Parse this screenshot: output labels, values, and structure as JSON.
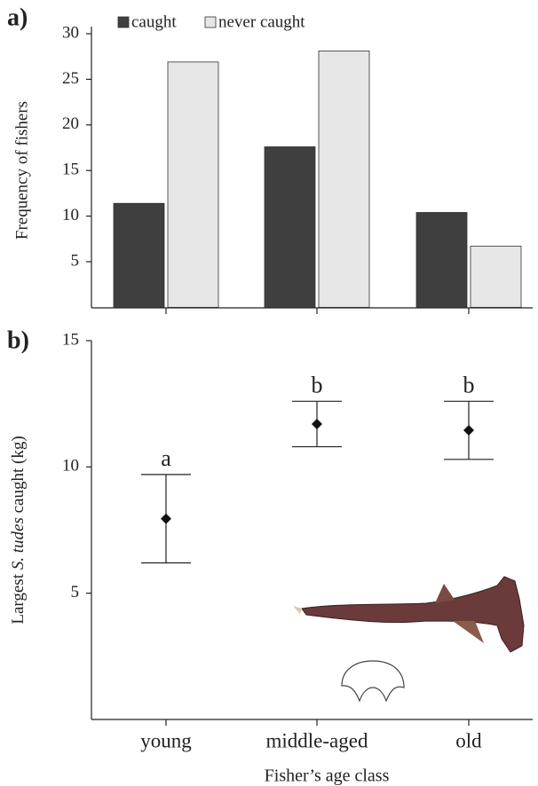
{
  "chart_data": [
    {
      "type": "bar",
      "panel_label": "a)",
      "ylabel": "Frequency of fishers",
      "categories": [
        "young",
        "middle-aged",
        "old"
      ],
      "series": [
        {
          "name": "caught",
          "color": "#3f3f3f",
          "values": [
            11.4,
            17.6,
            10.4
          ]
        },
        {
          "name": "never caught",
          "color": "#e6e6e6",
          "values": [
            26.9,
            28.1,
            6.7
          ]
        }
      ],
      "ylim": [
        0,
        30
      ],
      "yticks": [
        5,
        10,
        15,
        20,
        25,
        30
      ]
    },
    {
      "type": "errorbar",
      "panel_label": "b)",
      "ylabel_parts": [
        "Largest ",
        "S. tudes",
        " caught (kg)"
      ],
      "xlabel": "Fisher’s age class",
      "categories": [
        "young",
        "middle-aged",
        "old"
      ],
      "values": [
        7.95,
        11.7,
        11.45
      ],
      "lower": [
        6.2,
        10.8,
        10.3
      ],
      "upper": [
        9.7,
        12.6,
        12.6
      ],
      "annotations": [
        "a",
        "b",
        "b"
      ],
      "ylim": [
        0,
        15
      ],
      "yticks": [
        5,
        10,
        15
      ]
    }
  ]
}
